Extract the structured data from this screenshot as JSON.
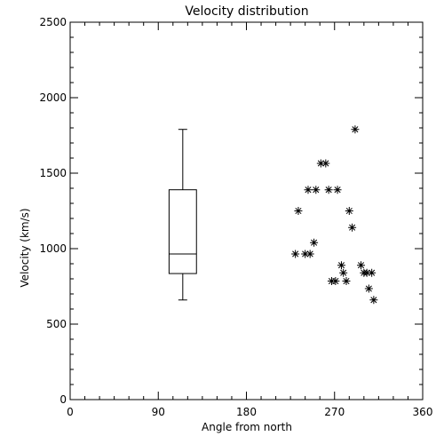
{
  "chart_data": {
    "type": "scatter",
    "title": "Velocity distribution",
    "xlabel": "Angle from north",
    "ylabel": "Velocity (km/s)",
    "xlim": [
      0,
      360
    ],
    "ylim": [
      0,
      2500
    ],
    "x_ticks": [
      0,
      90,
      180,
      270,
      360
    ],
    "x_tick_labels": [
      "0",
      "90",
      "180",
      "270",
      "360"
    ],
    "y_ticks": [
      0,
      500,
      1000,
      1500,
      2000,
      2500
    ],
    "y_tick_labels": [
      "0",
      "500",
      "1000",
      "1500",
      "2000",
      "2500"
    ],
    "grid": false,
    "marker": "asterisk",
    "boxplot": {
      "x": 115,
      "width": 28,
      "min": 660,
      "q1": 835,
      "median": 965,
      "q3": 1390,
      "max": 1790
    },
    "points": [
      {
        "x": 230,
        "y": 965
      },
      {
        "x": 233,
        "y": 1250
      },
      {
        "x": 240,
        "y": 965
      },
      {
        "x": 243,
        "y": 1390
      },
      {
        "x": 245,
        "y": 965
      },
      {
        "x": 249,
        "y": 1040
      },
      {
        "x": 251,
        "y": 1390
      },
      {
        "x": 256,
        "y": 1565
      },
      {
        "x": 261,
        "y": 1565
      },
      {
        "x": 264,
        "y": 1390
      },
      {
        "x": 267,
        "y": 785
      },
      {
        "x": 271,
        "y": 785
      },
      {
        "x": 273,
        "y": 1390
      },
      {
        "x": 277,
        "y": 890
      },
      {
        "x": 279,
        "y": 840
      },
      {
        "x": 282,
        "y": 785
      },
      {
        "x": 285,
        "y": 1250
      },
      {
        "x": 288,
        "y": 1140
      },
      {
        "x": 291,
        "y": 1790
      },
      {
        "x": 297,
        "y": 890
      },
      {
        "x": 300,
        "y": 840
      },
      {
        "x": 303,
        "y": 840
      },
      {
        "x": 305,
        "y": 735
      },
      {
        "x": 308,
        "y": 840
      },
      {
        "x": 310,
        "y": 660
      }
    ]
  }
}
